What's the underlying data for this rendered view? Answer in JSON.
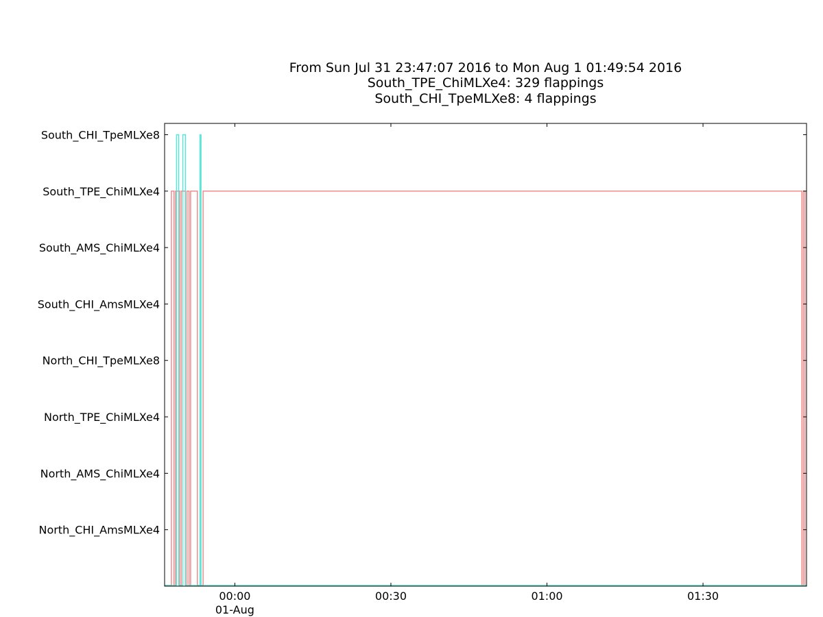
{
  "chart_data": {
    "type": "line",
    "title_lines": [
      "From Sun Jul 31 23:47:07 2016 to Mon Aug  1 01:49:54 2016",
      "South_TPE_ChiMLXe4: 329 flappings",
      "South_CHI_TpeMLXe8: 4 flappings"
    ],
    "y_categories": [
      "North_CHI_AmsMLXe4",
      "North_AMS_ChiMLXe4",
      "North_TPE_ChiMLXe4",
      "North_CHI_TpeMLXe8",
      "South_CHI_AmsMLXe4",
      "South_AMS_ChiMLXe4",
      "South_TPE_ChiMLXe4",
      "South_CHI_TpeMLXe8"
    ],
    "x_ticks": [
      {
        "value": 0,
        "label": "00:00",
        "sublabel": "01-Aug"
      },
      {
        "value": 30,
        "label": "00:30",
        "sublabel": ""
      },
      {
        "value": 60,
        "label": "01:00",
        "sublabel": ""
      },
      {
        "value": 90,
        "label": "01:30",
        "sublabel": ""
      }
    ],
    "xlim": [
      -13.5,
      109.9
    ],
    "ylim": [
      -1,
      7.2
    ],
    "series": [
      {
        "color": "#f08080",
        "level": 6,
        "spans": [
          [
            -12.2,
            -11.7
          ],
          [
            -11.4,
            -10.6
          ],
          [
            -10.3,
            -9.5
          ],
          [
            -9.2,
            -8.8
          ],
          [
            -8.5,
            -7.2
          ],
          [
            -6.1,
            109.0
          ],
          [
            109.3,
            109.6
          ]
        ]
      },
      {
        "color": "#40e0d0",
        "level": 7,
        "spans": [
          [
            -11.2,
            -10.8
          ],
          [
            -10.0,
            -9.5
          ],
          [
            -6.7,
            -6.5
          ]
        ]
      }
    ],
    "grid": false
  }
}
